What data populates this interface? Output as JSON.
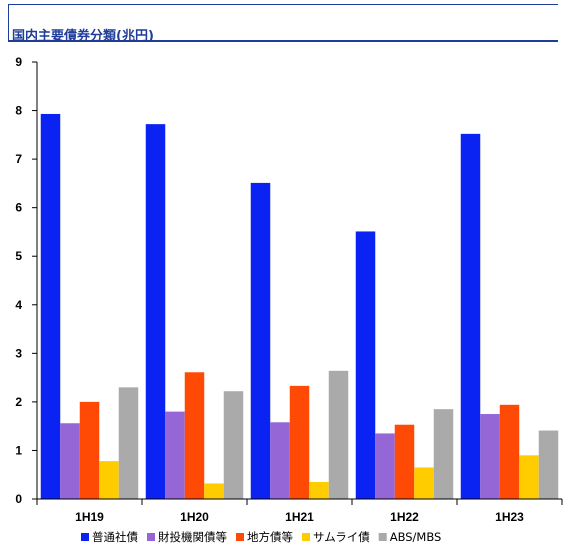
{
  "chart_data": {
    "type": "bar",
    "title": "国内主要債券分類(兆円)",
    "categories": [
      "1H19",
      "1H20",
      "1H21",
      "1H22",
      "1H23"
    ],
    "ylim": [
      0,
      9
    ],
    "yticks": [
      0,
      1,
      2,
      3,
      4,
      5,
      6,
      7,
      8,
      9
    ],
    "grid": false,
    "legend_position": "bottom",
    "series": [
      {
        "name": "普通社債",
        "color": "#0a22f2",
        "values": [
          7.93,
          7.72,
          6.51,
          5.51,
          7.52
        ]
      },
      {
        "name": "財投機関債等",
        "color": "#9466d6",
        "values": [
          1.56,
          1.8,
          1.58,
          1.35,
          1.75
        ]
      },
      {
        "name": "地方債等",
        "color": "#ff4a05",
        "values": [
          2.0,
          2.61,
          2.33,
          1.53,
          1.94
        ]
      },
      {
        "name": "サムライ債",
        "color": "#ffcc00",
        "values": [
          0.78,
          0.32,
          0.35,
          0.65,
          0.9
        ]
      },
      {
        "name": "ABS/MBS",
        "color": "#aaaaaa",
        "values": [
          2.3,
          2.22,
          2.64,
          1.85,
          1.41
        ]
      }
    ]
  }
}
